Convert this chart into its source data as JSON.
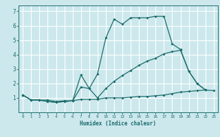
{
  "xlabel": "Humidex (Indice chaleur)",
  "background_color": "#cce8ed",
  "line_color": "#1a6b6b",
  "grid_color": "#ffffff",
  "xlim": [
    -0.5,
    23.5
  ],
  "ylim": [
    0,
    7.4
  ],
  "xticks": [
    0,
    1,
    2,
    3,
    4,
    5,
    6,
    7,
    8,
    9,
    10,
    11,
    12,
    13,
    14,
    15,
    16,
    17,
    18,
    19,
    20,
    21,
    22,
    23
  ],
  "yticks": [
    1,
    2,
    3,
    4,
    5,
    6,
    7
  ],
  "series": [
    {
      "x": [
        0,
        1,
        2,
        3,
        4,
        5,
        6,
        7,
        8,
        9,
        10,
        11,
        12,
        13,
        14,
        15,
        16,
        17,
        18,
        19,
        20,
        21,
        22,
        23
      ],
      "y": [
        1.2,
        0.85,
        0.85,
        0.85,
        0.75,
        0.8,
        0.8,
        0.9,
        0.9,
        0.9,
        1.0,
        1.0,
        1.0,
        1.05,
        1.1,
        1.1,
        1.15,
        1.2,
        1.3,
        1.4,
        1.45,
        1.5,
        1.55,
        1.5
      ]
    },
    {
      "x": [
        0,
        1,
        2,
        3,
        4,
        5,
        6,
        7,
        8,
        9,
        10,
        11,
        12,
        13,
        14,
        15,
        16,
        17,
        18,
        19,
        20,
        21,
        22
      ],
      "y": [
        1.2,
        0.85,
        0.85,
        0.75,
        0.7,
        0.75,
        0.8,
        1.75,
        1.65,
        2.65,
        5.15,
        6.45,
        6.1,
        6.55,
        6.55,
        6.55,
        6.65,
        6.65,
        4.75,
        4.35,
        2.85,
        2.0,
        1.55
      ]
    },
    {
      "x": [
        0,
        1,
        2,
        3,
        4,
        5,
        6,
        7,
        8,
        9,
        10,
        11,
        12,
        13,
        14,
        15,
        16,
        17,
        18,
        19,
        20,
        21,
        22
      ],
      "y": [
        1.2,
        0.85,
        0.85,
        0.75,
        0.7,
        0.75,
        0.8,
        2.6,
        1.65,
        1.0,
        1.65,
        2.15,
        2.55,
        2.9,
        3.25,
        3.55,
        3.75,
        4.05,
        4.2,
        4.3,
        2.85,
        2.0,
        1.55
      ]
    }
  ]
}
